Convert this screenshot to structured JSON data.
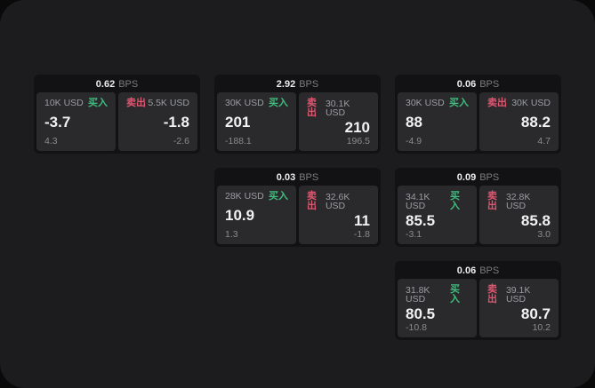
{
  "colors": {
    "buy": "#3fbd7f",
    "sell": "#e05670",
    "panel": "#1c1c1e",
    "card": "#121214",
    "tile": "#2a2a2c"
  },
  "labels": {
    "bps": "BPS",
    "buy": "买入",
    "sell": "卖出"
  },
  "cards": [
    {
      "bps": "0.62",
      "buy": {
        "amount": "10K USD",
        "price": "-3.7",
        "delta": "4.3"
      },
      "sell": {
        "amount": "5.5K USD",
        "price": "-1.8",
        "delta": "-2.6"
      }
    },
    {
      "bps": "2.92",
      "buy": {
        "amount": "30K USD",
        "price": "201",
        "delta": "-188.1"
      },
      "sell": {
        "amount": "30.1K USD",
        "price": "210",
        "delta": "196.5"
      }
    },
    {
      "bps": "0.06",
      "buy": {
        "amount": "30K USD",
        "price": "88",
        "delta": "-4.9"
      },
      "sell": {
        "amount": "30K USD",
        "price": "88.2",
        "delta": "4.7"
      }
    },
    {
      "bps": "0.03",
      "buy": {
        "amount": "28K USD",
        "price": "10.9",
        "delta": "1.3"
      },
      "sell": {
        "amount": "32.6K USD",
        "price": "11",
        "delta": "-1.8"
      }
    },
    {
      "bps": "0.09",
      "buy": {
        "amount": "34.1K USD",
        "price": "85.5",
        "delta": "-3.1"
      },
      "sell": {
        "amount": "32.8K USD",
        "price": "85.8",
        "delta": "3.0"
      }
    },
    {
      "bps": "0.06",
      "buy": {
        "amount": "31.8K USD",
        "price": "80.5",
        "delta": "-10.8"
      },
      "sell": {
        "amount": "39.1K USD",
        "price": "80.7",
        "delta": "10.2"
      }
    }
  ]
}
